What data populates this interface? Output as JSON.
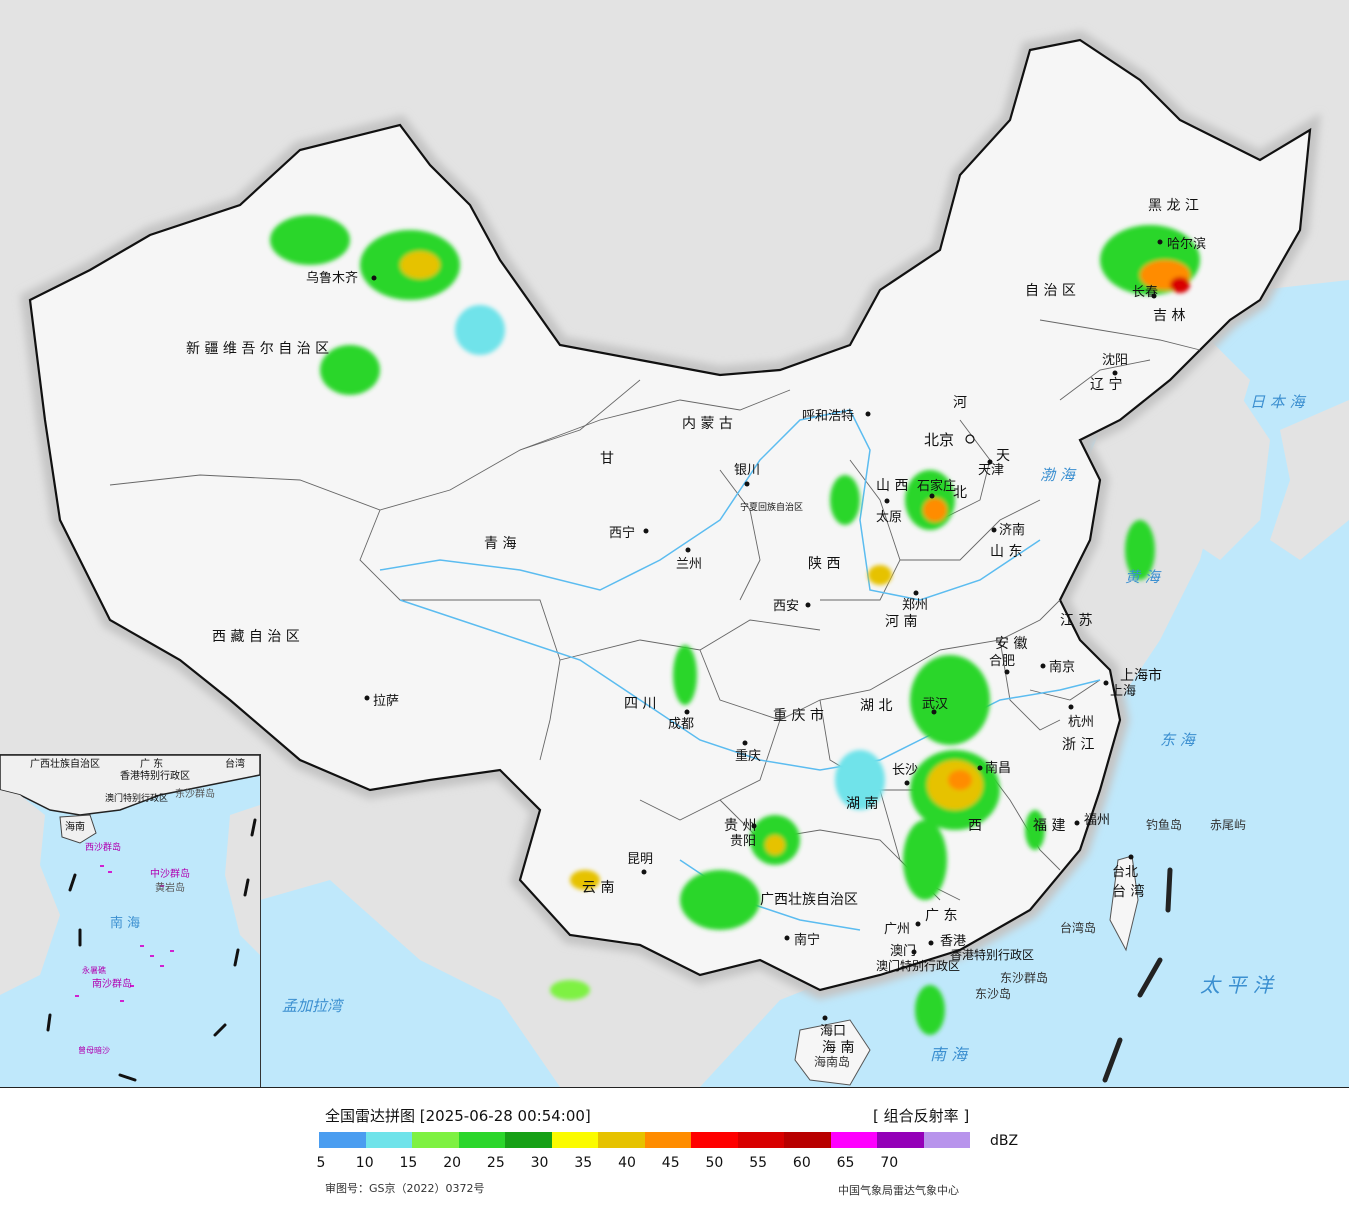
{
  "map": {
    "provinces": [
      {
        "key": "xinjiang",
        "text": "新 疆 维 吾 尔 自 治 区"
      },
      {
        "key": "xizang",
        "text": "西 藏 自 治 区"
      },
      {
        "key": "qinghai",
        "text": "青 海"
      },
      {
        "key": "gansu",
        "text": "甘"
      },
      {
        "key": "neimenggu",
        "text": "内 蒙 古"
      },
      {
        "key": "heilongjiang",
        "text": "黑 龙 江"
      },
      {
        "key": "jilin",
        "text": "吉 林"
      },
      {
        "key": "liaoning",
        "text": "辽 宁"
      },
      {
        "key": "hebei",
        "text": "北"
      },
      {
        "key": "hebei2",
        "text": "河"
      },
      {
        "key": "shanxi",
        "text": "山 西"
      },
      {
        "key": "shandong",
        "text": "山 东"
      },
      {
        "key": "henan",
        "text": "河 南"
      },
      {
        "key": "shaanxi",
        "text": "陕 西"
      },
      {
        "key": "sichuan",
        "text": "四 川"
      },
      {
        "key": "chongqing",
        "text": "重 庆 市"
      },
      {
        "key": "hubei",
        "text": "湖 北"
      },
      {
        "key": "hunan",
        "text": "湖 南"
      },
      {
        "key": "anhui",
        "text": "安 徽"
      },
      {
        "key": "jiangsu",
        "text": "江 苏"
      },
      {
        "key": "zhejiang",
        "text": "浙 江"
      },
      {
        "key": "jiangxi",
        "text": "西"
      },
      {
        "key": "fujian",
        "text": "福 建"
      },
      {
        "key": "guizhou",
        "text": "贵 州"
      },
      {
        "key": "yunnan",
        "text": "云 南"
      },
      {
        "key": "guangxi",
        "text": "广西壮族自治区"
      },
      {
        "key": "guangdong",
        "text": "广 东"
      },
      {
        "key": "hainan",
        "text": "海 南"
      },
      {
        "key": "taiwan",
        "text": "台 湾"
      },
      {
        "key": "shanghai",
        "text": "上海市"
      },
      {
        "key": "hongkong",
        "text": "香港特别行政区"
      },
      {
        "key": "macau",
        "text": "澳门特别行政区"
      },
      {
        "key": "ningxia",
        "text": "宁夏回族自治区"
      },
      {
        "key": "tianjin",
        "text": "天"
      },
      {
        "key": "neimeng_zi",
        "text": "自 治 区"
      }
    ],
    "cities": [
      {
        "key": "urumqi",
        "text": "乌鲁木齐"
      },
      {
        "key": "lhasa",
        "text": "拉萨"
      },
      {
        "key": "xining",
        "text": "西宁"
      },
      {
        "key": "lanzhou",
        "text": "兰州"
      },
      {
        "key": "yinchuan",
        "text": "银川"
      },
      {
        "key": "hohhot",
        "text": "呼和浩特"
      },
      {
        "key": "beijing",
        "text": "北京"
      },
      {
        "key": "tianjin_c",
        "text": "天津"
      },
      {
        "key": "shijiazhuang",
        "text": "石家庄"
      },
      {
        "key": "taiyuan",
        "text": "太原"
      },
      {
        "key": "jinan",
        "text": "济南"
      },
      {
        "key": "zhengzhou",
        "text": "郑州"
      },
      {
        "key": "xian",
        "text": "西安"
      },
      {
        "key": "chengdu",
        "text": "成都"
      },
      {
        "key": "chongqing_c",
        "text": "重庆"
      },
      {
        "key": "wuhan",
        "text": "武汉"
      },
      {
        "key": "changsha",
        "text": "长沙"
      },
      {
        "key": "hefei",
        "text": "合肥"
      },
      {
        "key": "nanjing",
        "text": "南京"
      },
      {
        "key": "shanghai_c",
        "text": "上海"
      },
      {
        "key": "hangzhou",
        "text": "杭州"
      },
      {
        "key": "nanchang",
        "text": "南昌"
      },
      {
        "key": "fuzhou",
        "text": "福州"
      },
      {
        "key": "taipei",
        "text": "台北"
      },
      {
        "key": "guiyang",
        "text": "贵阳"
      },
      {
        "key": "kunming",
        "text": "昆明"
      },
      {
        "key": "nanning",
        "text": "南宁"
      },
      {
        "key": "guangzhou",
        "text": "广州"
      },
      {
        "key": "hongkong_c",
        "text": "香港"
      },
      {
        "key": "macau_c",
        "text": "澳门"
      },
      {
        "key": "haikou",
        "text": "海口"
      },
      {
        "key": "shenyang",
        "text": "沈阳"
      },
      {
        "key": "changchun",
        "text": "长春"
      },
      {
        "key": "harbin",
        "text": "哈尔滨"
      }
    ],
    "seas": [
      {
        "key": "riben",
        "text": "日 本 海"
      },
      {
        "key": "bohai",
        "text": "渤 海"
      },
      {
        "key": "huanghai",
        "text": "黄 海"
      },
      {
        "key": "donghai",
        "text": "东 海"
      },
      {
        "key": "taipingyang",
        "text": "太 平 洋"
      },
      {
        "key": "nanhai",
        "text": "南 海"
      },
      {
        "key": "mengjiala",
        "text": "孟加拉湾"
      }
    ],
    "islands": [
      {
        "key": "diaoyu",
        "text": "钓鱼岛"
      },
      {
        "key": "chiwei",
        "text": "赤尾屿"
      },
      {
        "key": "taiwandao",
        "text": "台湾岛"
      },
      {
        "key": "dongsha",
        "text": "东沙群岛"
      },
      {
        "key": "dongsha2",
        "text": "东沙岛"
      },
      {
        "key": "hainandao",
        "text": "海南岛"
      }
    ],
    "inset_labels": [
      {
        "key": "i_guangxi",
        "text": "广西壮族自治区"
      },
      {
        "key": "i_guangdong",
        "text": "广 东"
      },
      {
        "key": "i_taiwan",
        "text": "台湾"
      },
      {
        "key": "i_hk",
        "text": "香港特别行政区"
      },
      {
        "key": "i_macau",
        "text": "澳门特别行政区"
      },
      {
        "key": "i_dongsha",
        "text": "东沙群岛"
      },
      {
        "key": "i_hainan",
        "text": "海南"
      },
      {
        "key": "i_zhongsha",
        "text": "中沙群岛"
      },
      {
        "key": "i_huangyan",
        "text": "黄岩岛"
      },
      {
        "key": "i_nanhai",
        "text": "南 海"
      },
      {
        "key": "i_nansha",
        "text": "南沙群岛"
      },
      {
        "key": "i_yongshu",
        "text": "永暑礁"
      },
      {
        "key": "i_zengmu",
        "text": "曾母暗沙"
      },
      {
        "key": "i_xisha",
        "text": "西沙群岛"
      }
    ]
  },
  "legend": {
    "title": "全国雷达拼图 [2025-06-28 00:54:00]",
    "product": "[ 组合反射率 ]",
    "unit": "dBZ",
    "colors": [
      "#4a9df0",
      "#6fe3ea",
      "#7ef142",
      "#2bd62b",
      "#16a016",
      "#fbfb00",
      "#e6c200",
      "#ff8c00",
      "#ff0000",
      "#d80000",
      "#b80000",
      "#ff00ff",
      "#9400b8",
      "#b894ec"
    ],
    "ticks": [
      "5",
      "10",
      "15",
      "20",
      "25",
      "30",
      "35",
      "40",
      "45",
      "50",
      "55",
      "60",
      "65",
      "70"
    ],
    "approval": "审图号：GS京（2022）0372号",
    "producer": "中国气象局雷达气象中心"
  }
}
